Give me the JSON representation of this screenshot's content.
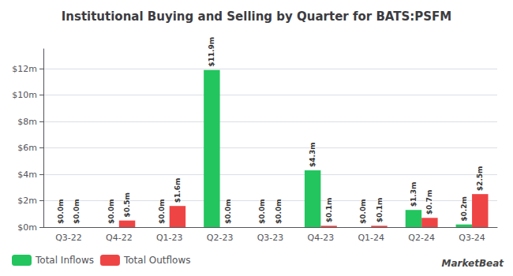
{
  "chart_data": {
    "type": "bar",
    "title": "Institutional Buying and Selling by Quarter for BATS:PSFM",
    "categories": [
      "Q3-22",
      "Q4-22",
      "Q1-23",
      "Q2-23",
      "Q3-23",
      "Q4-23",
      "Q1-24",
      "Q2-24",
      "Q3-24"
    ],
    "series": [
      {
        "name": "Total Inflows",
        "color": "#22c55e",
        "values": [
          0.0,
          0.0,
          0.0,
          11.9,
          0.0,
          4.3,
          0.0,
          1.3,
          0.2
        ],
        "value_labels": [
          "$0.0m",
          "$0.0m",
          "$0.0m",
          "$11.9m",
          "$0.0m",
          "$4.3m",
          "$0.0m",
          "$1.3m",
          "$0.2m"
        ]
      },
      {
        "name": "Total Outflows",
        "color": "#ef4444",
        "values": [
          0.0,
          0.5,
          1.6,
          0.0,
          0.0,
          0.1,
          0.1,
          0.7,
          2.5
        ],
        "value_labels": [
          "$0.0m",
          "$0.5m",
          "$1.6m",
          "$0.0m",
          "$0.0m",
          "$0.1m",
          "$0.1m",
          "$0.7m",
          "$2.5m"
        ]
      }
    ],
    "ylim": [
      0,
      13.5
    ],
    "yticks": [
      {
        "value": 0,
        "label": "$0m"
      },
      {
        "value": 2,
        "label": "$2m"
      },
      {
        "value": 4,
        "label": "$4m"
      },
      {
        "value": 6,
        "label": "$6m"
      },
      {
        "value": 8,
        "label": "$8m"
      },
      {
        "value": 10,
        "label": "$10m"
      },
      {
        "value": 12,
        "label": "$12m"
      }
    ],
    "grid": true,
    "legend": "bottom",
    "data_labels": true,
    "annotations": [
      "MarketBeat"
    ]
  }
}
